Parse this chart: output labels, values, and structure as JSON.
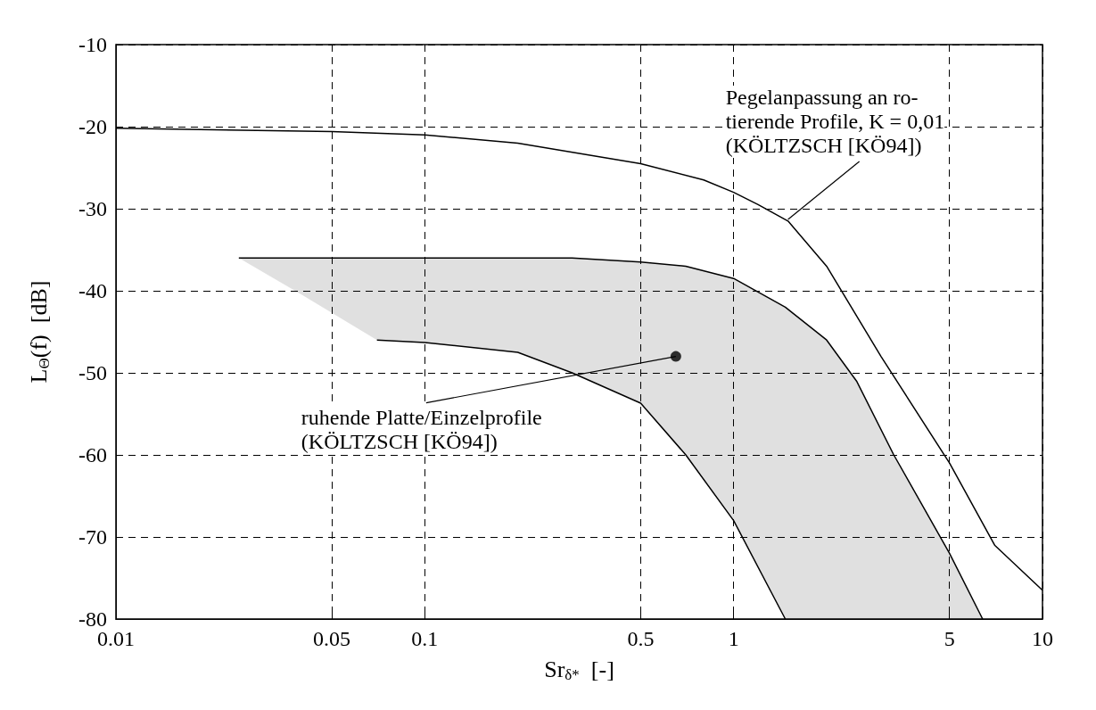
{
  "chart_data": {
    "type": "line",
    "xlabel": "Sr$_{δ*}$  [-]",
    "ylabel": "L$_{Θ}$(f)  [dB]",
    "log": "x",
    "xlim": [
      0.01,
      10
    ],
    "xticks": [
      0.01,
      0.05,
      0.1,
      0.5,
      1,
      5,
      10
    ],
    "ylim": [
      -80,
      -10
    ],
    "yticks": [
      -80,
      -70,
      -60,
      -50,
      -40,
      -30,
      -20,
      -10
    ],
    "grid": true,
    "line_style": "solid",
    "marker": "none",
    "series": [
      {
        "color": "#000000",
        "x": [
          0.01,
          0.05,
          0.1,
          0.2,
          0.5,
          0.8,
          1,
          1.2,
          1.5,
          2,
          3,
          5,
          7,
          10
        ],
        "values": [
          -20.2,
          -20.6,
          -21,
          -22,
          -24.5,
          -26.5,
          -28,
          -29.5,
          -31.5,
          -37,
          -48,
          -61,
          -71,
          -76.5
        ]
      },
      {
        "type": "line",
        "color": "#000000",
        "x": [
          0.025,
          0.04,
          0.07,
          0.1,
          0.2,
          0.3,
          0.5,
          0.7,
          1,
          1.47,
          2,
          2.5,
          3.3,
          5,
          6.4
        ],
        "values": [
          -36,
          -36,
          -36,
          -36,
          -36,
          -36,
          -36.5,
          -37,
          -38.5,
          -42,
          -46,
          -51,
          -60,
          -72,
          -80
        ],
        "upper": [
          -36,
          -36,
          -36,
          -36,
          -36,
          -36,
          -36.5,
          -37,
          -38.5,
          -42,
          -46,
          -51,
          -60,
          -72,
          -80
        ],
        "lower": [
          -36,
          -40.5,
          -46,
          -46.3,
          -47.5,
          -50,
          -53.7,
          -60,
          -68,
          -80,
          -80,
          -80,
          -80,
          -80,
          -80
        ]
      },
      {
        "color": "#000000",
        "x": [
          0.07,
          0.1,
          0.2,
          0.3,
          0.5,
          0.7,
          1,
          1.47
        ],
        "values": [
          -46,
          -46.3,
          -47.5,
          -50,
          -53.7,
          -60,
          -68,
          -80
        ]
      },
      {
        "type": "scatter",
        "color": "#000000",
        "marker": "circle",
        "x": [
          0.65
        ],
        "values": [
          -48
        ]
      }
    ],
    "annotations": [
      {
        "text": "Pegelanpassung an ro-\ntierende Profile, K = 0,01\n(KÖLTZSCH [KÖ94])",
        "x": 1.5,
        "y": -31.3
      },
      {
        "text": "ruhende Platte/Einzelprofile\n(KÖLTZSCH [KÖ94])",
        "x": 0.65,
        "y": -48
      }
    ]
  }
}
